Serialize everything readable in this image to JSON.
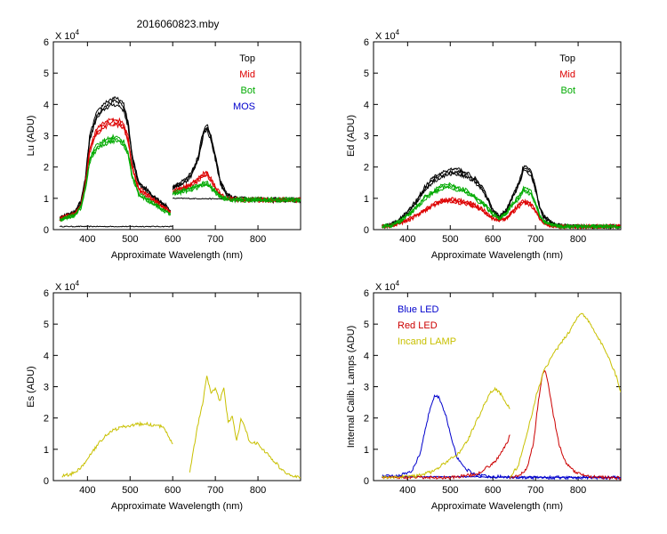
{
  "figure_title": "2016060823.mby",
  "chart_data": [
    {
      "id": "lu",
      "type": "line",
      "xlabel": "Approximate Wavelength (nm)",
      "ylabel": "Lu (ADU)",
      "scale_label": "X 10",
      "scale_exp": "4",
      "xlim": [
        320,
        900
      ],
      "ylim": [
        0,
        6
      ],
      "xticks": [
        400,
        500,
        600,
        700,
        800
      ],
      "yticks": [
        0,
        1,
        2,
        3,
        4,
        5,
        6
      ],
      "legend": [
        {
          "name": "Top",
          "color": "#000000"
        },
        {
          "name": "Mid",
          "color": "#dd0000"
        },
        {
          "name": "Bot",
          "color": "#00aa00"
        },
        {
          "name": "MOS",
          "color": "#0000cc"
        }
      ],
      "series": [
        {
          "name": "Top",
          "color": "#000000",
          "segments": [
            {
              "x": [
                335,
                350,
                370,
                385,
                395,
                405,
                420,
                440,
                460,
                475,
                485,
                495,
                505,
                520,
                540,
                560,
                580,
                595
              ],
              "y": [
                0.35,
                0.45,
                0.55,
                0.9,
                1.6,
                2.9,
                3.6,
                3.95,
                4.1,
                4.05,
                3.9,
                3.4,
                2.3,
                1.5,
                1.25,
                1.0,
                0.8,
                0.6
              ]
            },
            {
              "x": [
                600,
                615,
                630,
                645,
                660,
                672,
                680,
                690,
                700,
                712,
                725,
                740,
                760,
                800,
                840,
                900
              ],
              "y": [
                1.35,
                1.45,
                1.55,
                1.8,
                2.3,
                3.1,
                3.3,
                2.9,
                2.3,
                1.5,
                1.15,
                1.0,
                0.97,
                0.96,
                0.95,
                0.95
              ]
            }
          ]
        },
        {
          "name": "Mid",
          "color": "#dd0000",
          "segments": [
            {
              "x": [
                335,
                350,
                370,
                385,
                395,
                405,
                420,
                440,
                460,
                475,
                485,
                495,
                505,
                520,
                540,
                560,
                580,
                595
              ],
              "y": [
                0.33,
                0.42,
                0.5,
                0.8,
                1.45,
                2.5,
                3.1,
                3.35,
                3.45,
                3.4,
                3.3,
                2.9,
                2.0,
                1.3,
                1.1,
                0.9,
                0.7,
                0.55
              ]
            },
            {
              "x": [
                600,
                615,
                630,
                645,
                660,
                672,
                680,
                690,
                700,
                712,
                725,
                740,
                760,
                800,
                840,
                900
              ],
              "y": [
                1.2,
                1.3,
                1.35,
                1.45,
                1.6,
                1.75,
                1.78,
                1.6,
                1.35,
                1.1,
                1.0,
                0.97,
                0.96,
                0.95,
                0.95,
                0.95
              ]
            }
          ]
        },
        {
          "name": "Bot",
          "color": "#00aa00",
          "segments": [
            {
              "x": [
                335,
                350,
                370,
                385,
                395,
                405,
                420,
                440,
                460,
                475,
                485,
                495,
                505,
                520,
                540,
                560,
                580,
                595
              ],
              "y": [
                0.3,
                0.38,
                0.45,
                0.72,
                1.3,
                2.2,
                2.6,
                2.8,
                2.9,
                2.85,
                2.75,
                2.45,
                1.7,
                1.15,
                0.95,
                0.8,
                0.6,
                0.5
              ]
            },
            {
              "x": [
                600,
                615,
                630,
                645,
                660,
                672,
                680,
                690,
                700,
                712,
                725,
                740,
                760,
                800,
                840,
                900
              ],
              "y": [
                1.15,
                1.2,
                1.25,
                1.3,
                1.38,
                1.45,
                1.47,
                1.35,
                1.2,
                1.05,
                0.98,
                0.96,
                0.95,
                0.95,
                0.95,
                0.95
              ]
            }
          ]
        }
      ],
      "flat_segments": [
        {
          "color": "#000000",
          "x": [
            335,
            600
          ],
          "y": [
            0.1,
            0.1
          ]
        },
        {
          "color": "#000000",
          "x": [
            600,
            900
          ],
          "y": [
            1.0,
            0.95
          ]
        }
      ]
    },
    {
      "id": "ed",
      "type": "line",
      "xlabel": "Approximate Wavelength (nm)",
      "ylabel": "Ed  (ADU)",
      "scale_label": "X 10",
      "scale_exp": "4",
      "xlim": [
        320,
        900
      ],
      "ylim": [
        0,
        6
      ],
      "xticks": [
        400,
        500,
        600,
        700,
        800
      ],
      "yticks": [
        0,
        1,
        2,
        3,
        4,
        5,
        6
      ],
      "legend": [
        {
          "name": "Top",
          "color": "#000000"
        },
        {
          "name": "Mid",
          "color": "#dd0000"
        },
        {
          "name": "Bot",
          "color": "#00aa00"
        }
      ],
      "series": [
        {
          "name": "Top",
          "color": "#000000",
          "segments": [
            {
              "x": [
                340,
                360,
                380,
                400,
                420,
                440,
                460,
                480,
                500,
                520,
                540,
                560,
                580,
                600,
                615,
                630,
                645,
                660,
                672,
                680,
                690,
                700,
                710,
                720,
                740,
                760,
                800,
                850,
                900
              ],
              "y": [
                0.1,
                0.15,
                0.3,
                0.55,
                0.9,
                1.3,
                1.6,
                1.75,
                1.85,
                1.85,
                1.75,
                1.55,
                1.2,
                0.6,
                0.4,
                0.6,
                1.0,
                1.45,
                1.95,
                1.9,
                1.8,
                1.3,
                0.7,
                0.4,
                0.2,
                0.12,
                0.1,
                0.1,
                0.1
              ]
            }
          ]
        },
        {
          "name": "Mid",
          "color": "#dd0000",
          "segments": [
            {
              "x": [
                340,
                360,
                380,
                400,
                420,
                440,
                460,
                480,
                500,
                520,
                540,
                560,
                580,
                600,
                615,
                630,
                645,
                660,
                672,
                680,
                690,
                700,
                710,
                720,
                740,
                760,
                800,
                850,
                900
              ],
              "y": [
                0.1,
                0.12,
                0.2,
                0.3,
                0.45,
                0.6,
                0.8,
                0.9,
                0.95,
                0.9,
                0.85,
                0.75,
                0.6,
                0.35,
                0.3,
                0.35,
                0.55,
                0.75,
                0.9,
                0.85,
                0.8,
                0.6,
                0.35,
                0.2,
                0.12,
                0.1,
                0.1,
                0.1,
                0.1
              ]
            }
          ]
        },
        {
          "name": "Bot",
          "color": "#00aa00",
          "segments": [
            {
              "x": [
                340,
                360,
                380,
                400,
                420,
                440,
                460,
                480,
                500,
                520,
                540,
                560,
                580,
                600,
                615,
                630,
                645,
                660,
                672,
                680,
                690,
                700,
                710,
                720,
                740,
                760,
                800,
                850,
                900
              ],
              "y": [
                0.1,
                0.13,
                0.25,
                0.45,
                0.7,
                1.0,
                1.2,
                1.35,
                1.4,
                1.3,
                1.2,
                1.0,
                0.8,
                0.5,
                0.35,
                0.5,
                0.8,
                1.0,
                1.3,
                1.25,
                1.15,
                0.85,
                0.45,
                0.25,
                0.15,
                0.1,
                0.1,
                0.1,
                0.1
              ]
            }
          ]
        }
      ],
      "flat_segments": []
    },
    {
      "id": "es",
      "type": "line",
      "xlabel": "Approximate Wavelength (nm)",
      "ylabel": "Es  (ADU)",
      "scale_label": "X 10",
      "scale_exp": "4",
      "xlim": [
        320,
        900
      ],
      "ylim": [
        0,
        6
      ],
      "xticks": [
        400,
        500,
        600,
        700,
        800
      ],
      "yticks": [
        0,
        1,
        2,
        3,
        4,
        5,
        6
      ],
      "legend": [],
      "series": [
        {
          "name": "Es",
          "color": "#c8c000",
          "segments": [
            {
              "x": [
                340,
                360,
                380,
                400,
                420,
                440,
                460,
                480,
                500,
                520,
                540,
                560,
                580,
                600
              ],
              "y": [
                0.15,
                0.2,
                0.35,
                0.7,
                1.1,
                1.45,
                1.65,
                1.75,
                1.8,
                1.85,
                1.85,
                1.8,
                1.75,
                1.2
              ]
            },
            {
              "x": [
                640,
                650,
                660,
                670,
                680,
                690,
                700,
                710,
                720,
                730,
                740,
                750,
                760,
                770,
                780,
                800,
                820,
                840,
                860,
                880,
                900
              ],
              "y": [
                0.3,
                1.1,
                1.9,
                2.5,
                3.4,
                2.9,
                3.0,
                2.6,
                3.0,
                1.9,
                2.1,
                1.3,
                2.0,
                1.7,
                1.3,
                1.2,
                0.9,
                0.6,
                0.3,
                0.15,
                0.1
              ]
            }
          ]
        }
      ],
      "flat_segments": []
    },
    {
      "id": "cal",
      "type": "line",
      "xlabel": "Approximate Wavelength (nm)",
      "ylabel": "Internal Calib. Lamps (ADU)",
      "scale_label": "X 10",
      "scale_exp": "4",
      "xlim": [
        320,
        900
      ],
      "ylim": [
        0,
        6
      ],
      "xticks": [
        400,
        500,
        600,
        700,
        800
      ],
      "yticks": [
        0,
        1,
        2,
        3,
        4,
        5,
        6
      ],
      "legend": [
        {
          "name": "Blue LED",
          "color": "#0000cc"
        },
        {
          "name": "Red LED",
          "color": "#cc0000"
        },
        {
          "name": "Incand LAMP",
          "color": "#c8c000"
        }
      ],
      "series": [
        {
          "name": "Blue LED",
          "color": "#0000cc",
          "segments": [
            {
              "x": [
                340,
                380,
                410,
                430,
                445,
                455,
                465,
                475,
                490,
                505,
                515,
                525,
                540,
                560,
                580,
                620,
                680,
                760,
                900
              ],
              "y": [
                0.15,
                0.15,
                0.3,
                0.9,
                1.9,
                2.5,
                2.8,
                2.7,
                2.1,
                1.3,
                0.8,
                0.55,
                0.35,
                0.2,
                0.15,
                0.12,
                0.1,
                0.1,
                0.1
              ]
            }
          ]
        },
        {
          "name": "Red LED",
          "color": "#cc0000",
          "segments": [
            {
              "x": [
                340,
                500,
                560,
                600,
                620,
                635,
                640
              ],
              "y": [
                0.1,
                0.1,
                0.2,
                0.55,
                0.9,
                1.3,
                1.5
              ]
            },
            {
              "x": [
                640,
                660,
                680,
                695,
                705,
                715,
                722,
                730,
                740,
                755,
                770,
                790,
                820,
                860,
                900
              ],
              "y": [
                0.1,
                0.15,
                0.4,
                1.2,
                2.4,
                3.4,
                3.65,
                3.2,
                2.3,
                1.2,
                0.6,
                0.3,
                0.15,
                0.1,
                0.08
              ]
            }
          ]
        },
        {
          "name": "Incand LAMP",
          "color": "#c8c000",
          "segments": [
            {
              "x": [
                340,
                420,
                460,
                500,
                520,
                540,
                560,
                580,
                595,
                605,
                615,
                625,
                640
              ],
              "y": [
                0.1,
                0.15,
                0.3,
                0.7,
                0.9,
                1.3,
                1.9,
                2.5,
                2.9,
                3.0,
                2.9,
                2.7,
                2.35
              ]
            },
            {
              "x": [
                640,
                660,
                680,
                700,
                720,
                740,
                760,
                780,
                800,
                810,
                830,
                850,
                870,
                890,
                900
              ],
              "y": [
                0.1,
                0.5,
                1.5,
                2.7,
                3.6,
                4.1,
                4.5,
                4.9,
                5.4,
                5.5,
                5.1,
                4.6,
                4.1,
                3.4,
                2.9
              ]
            }
          ]
        }
      ],
      "flat_segments": [
        {
          "color": "#0000cc",
          "x": [
            340,
            900
          ],
          "y": [
            0.13,
            0.1
          ]
        }
      ]
    }
  ]
}
